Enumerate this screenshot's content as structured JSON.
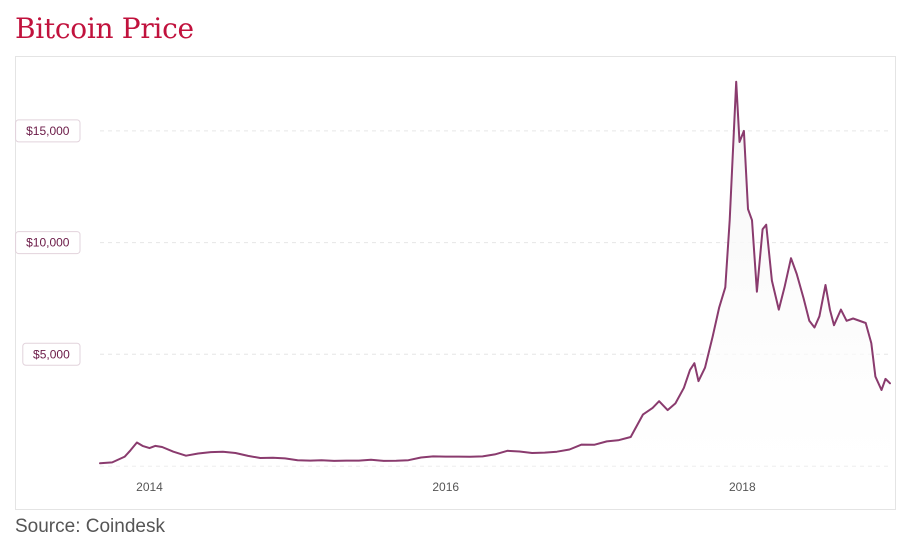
{
  "title": "Bitcoin Price",
  "source": "Source: Coindesk",
  "colors": {
    "title": "#c1123d",
    "line": "#8a3b6e",
    "grid": "#e6e6e6",
    "area_fill": "#f5f5f5"
  },
  "chart_data": {
    "type": "area",
    "title": "Bitcoin Price",
    "xlabel": "",
    "ylabel": "",
    "y_ticks": [
      5000,
      10000,
      15000
    ],
    "y_tick_labels": [
      "$5,000",
      "$10,000",
      "$15,000"
    ],
    "x_ticks": [
      "2014-01-01",
      "2016-01-01",
      "2018-01-01"
    ],
    "x_tick_labels": [
      "2014",
      "2016",
      "2018"
    ],
    "xlim": [
      "2013-09-01",
      "2018-12-31"
    ],
    "ylim": [
      0,
      17500
    ],
    "grid": true,
    "legend": "none",
    "series": [
      {
        "values": [
          [
            "2013-09-01",
            125
          ],
          [
            "2013-10-01",
            160
          ],
          [
            "2013-11-01",
            420
          ],
          [
            "2013-11-15",
            700
          ],
          [
            "2013-12-01",
            1050
          ],
          [
            "2013-12-15",
            900
          ],
          [
            "2014-01-01",
            800
          ],
          [
            "2014-01-15",
            900
          ],
          [
            "2014-02-01",
            850
          ],
          [
            "2014-03-01",
            640
          ],
          [
            "2014-04-01",
            460
          ],
          [
            "2014-05-01",
            560
          ],
          [
            "2014-06-01",
            620
          ],
          [
            "2014-07-01",
            640
          ],
          [
            "2014-08-01",
            580
          ],
          [
            "2014-09-01",
            450
          ],
          [
            "2014-10-01",
            360
          ],
          [
            "2014-11-01",
            370
          ],
          [
            "2014-12-01",
            340
          ],
          [
            "2015-01-01",
            260
          ],
          [
            "2015-02-01",
            240
          ],
          [
            "2015-03-01",
            260
          ],
          [
            "2015-04-01",
            230
          ],
          [
            "2015-05-01",
            240
          ],
          [
            "2015-06-01",
            240
          ],
          [
            "2015-07-01",
            280
          ],
          [
            "2015-08-01",
            230
          ],
          [
            "2015-09-01",
            235
          ],
          [
            "2015-10-01",
            260
          ],
          [
            "2015-11-01",
            380
          ],
          [
            "2015-12-01",
            430
          ],
          [
            "2016-01-01",
            420
          ],
          [
            "2016-02-01",
            420
          ],
          [
            "2016-03-01",
            415
          ],
          [
            "2016-04-01",
            430
          ],
          [
            "2016-05-01",
            520
          ],
          [
            "2016-06-01",
            680
          ],
          [
            "2016-07-01",
            650
          ],
          [
            "2016-08-01",
            580
          ],
          [
            "2016-09-01",
            600
          ],
          [
            "2016-10-01",
            640
          ],
          [
            "2016-11-01",
            740
          ],
          [
            "2016-12-01",
            960
          ],
          [
            "2017-01-01",
            950
          ],
          [
            "2017-02-01",
            1100
          ],
          [
            "2017-03-01",
            1150
          ],
          [
            "2017-04-01",
            1300
          ],
          [
            "2017-05-01",
            2300
          ],
          [
            "2017-05-25",
            2600
          ],
          [
            "2017-06-10",
            2900
          ],
          [
            "2017-07-01",
            2500
          ],
          [
            "2017-07-20",
            2800
          ],
          [
            "2017-08-10",
            3500
          ],
          [
            "2017-08-25",
            4300
          ],
          [
            "2017-09-05",
            4600
          ],
          [
            "2017-09-15",
            3800
          ],
          [
            "2017-10-01",
            4400
          ],
          [
            "2017-10-20",
            5800
          ],
          [
            "2017-11-05",
            7100
          ],
          [
            "2017-11-20",
            8000
          ],
          [
            "2017-12-01",
            11000
          ],
          [
            "2017-12-17",
            17200
          ],
          [
            "2017-12-25",
            14500
          ],
          [
            "2018-01-05",
            15000
          ],
          [
            "2018-01-15",
            11500
          ],
          [
            "2018-01-25",
            11000
          ],
          [
            "2018-02-06",
            7800
          ],
          [
            "2018-02-20",
            10600
          ],
          [
            "2018-03-01",
            10800
          ],
          [
            "2018-03-15",
            8300
          ],
          [
            "2018-04-01",
            7000
          ],
          [
            "2018-04-15",
            8000
          ],
          [
            "2018-05-01",
            9300
          ],
          [
            "2018-05-15",
            8600
          ],
          [
            "2018-06-01",
            7500
          ],
          [
            "2018-06-15",
            6500
          ],
          [
            "2018-06-28",
            6200
          ],
          [
            "2018-07-10",
            6700
          ],
          [
            "2018-07-25",
            8100
          ],
          [
            "2018-08-05",
            7000
          ],
          [
            "2018-08-15",
            6300
          ],
          [
            "2018-09-01",
            7000
          ],
          [
            "2018-09-15",
            6500
          ],
          [
            "2018-10-01",
            6600
          ],
          [
            "2018-11-01",
            6400
          ],
          [
            "2018-11-15",
            5500
          ],
          [
            "2018-11-25",
            4000
          ],
          [
            "2018-12-10",
            3400
          ],
          [
            "2018-12-20",
            3900
          ],
          [
            "2018-12-31",
            3700
          ]
        ]
      }
    ]
  }
}
